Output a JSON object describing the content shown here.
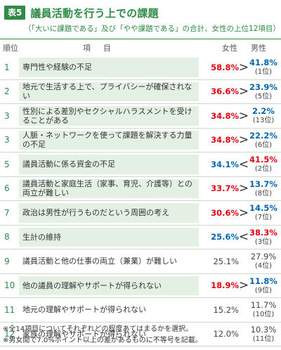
{
  "table": {
    "badge": "表5",
    "title": "議員活動を行う上での課題",
    "subtitle": "（「大いに課題である」及び「やや課題である」の合計、女性の上位12項目）"
  },
  "headers": {
    "rank": "順位",
    "item": "項目",
    "female": "女性",
    "male": "男性"
  },
  "rows": [
    {
      "rank": "1",
      "item": "専門性や経験の不足",
      "female": "58.8%",
      "female_style": "hot",
      "cmp": ">",
      "male": "41.8%",
      "male_style": "cool",
      "male_rank": "(1位)",
      "shaded": true
    },
    {
      "rank": "2",
      "item": "地元で生活する上で、プライバシーが確保されない",
      "female": "36.6%",
      "female_style": "hot",
      "cmp": ">",
      "male": "23.9%",
      "male_style": "cool",
      "male_rank": "(5位)",
      "shaded": true
    },
    {
      "rank": "3",
      "item": "性別による差別やセクシャルハラスメントを受けることがある",
      "female": "34.8%",
      "female_style": "hot",
      "cmp": ">",
      "male": "2.2%",
      "male_style": "cool",
      "male_rank": "(13位)",
      "shaded": true
    },
    {
      "rank": "3",
      "item": "人脈・ネットワークを使って課題を解決する力量の不足",
      "female": "34.8%",
      "female_style": "hot",
      "cmp": ">",
      "male": "22.2%",
      "male_style": "cool",
      "male_rank": "(6位)",
      "shaded": true
    },
    {
      "rank": "5",
      "item": "議員活動に係る資金の不足",
      "female": "34.1%",
      "female_style": "cool",
      "cmp": "<",
      "male": "41.5%",
      "male_style": "hot",
      "male_rank": "(2位)",
      "shaded": true
    },
    {
      "rank": "6",
      "item": "議員活動と家庭生活（家事、育児、介護等）との両立が難しい",
      "female": "33.7%",
      "female_style": "hot",
      "cmp": ">",
      "male": "13.7%",
      "male_style": "cool",
      "male_rank": "(8位)",
      "shaded": true
    },
    {
      "rank": "7",
      "item": "政治は男性が行うものだという周囲の考え",
      "female": "30.6%",
      "female_style": "hot",
      "cmp": ">",
      "male": "14.5%",
      "male_style": "cool",
      "male_rank": "(7位)",
      "shaded": true
    },
    {
      "rank": "8",
      "item": "生計の維持",
      "female": "25.6%",
      "female_style": "cool",
      "cmp": "<",
      "male": "38.3%",
      "male_style": "hot",
      "male_rank": "(3位)",
      "shaded": true
    },
    {
      "rank": "9",
      "item": "議員活動と他の仕事の両立（兼業）が難しい",
      "female": "25.1%",
      "female_style": "neutral",
      "cmp": "",
      "male": "27.9%",
      "male_style": "neutral",
      "male_rank": "(4位)",
      "shaded": false
    },
    {
      "rank": "10",
      "item": "他の議員の理解やサポートが得られない",
      "female": "18.9%",
      "female_style": "hot",
      "cmp": ">",
      "male": "11.8%",
      "male_style": "cool",
      "male_rank": "(9位)",
      "shaded": true
    },
    {
      "rank": "11",
      "item": "地元の理解やサポートが得られない",
      "female": "15.2%",
      "female_style": "neutral",
      "cmp": "",
      "male": "11.7%",
      "male_style": "neutral",
      "male_rank": "(10位)",
      "shaded": false
    },
    {
      "rank": "12",
      "item": "家族の理解やサポートが得られない",
      "female": "12.0%",
      "female_style": "neutral",
      "cmp": "",
      "male": "10.3%",
      "male_style": "neutral",
      "male_rank": "(11位)",
      "shaded": false
    }
  ],
  "notes": [
    "※全14項目についてそれぞれどの程度あてはまるかを選択。",
    "※男女間で7.0%ポイント以上の差があるものに不等号を記載。"
  ],
  "colors": {
    "accent": "#2e8a45",
    "shade": "#e4f0e4",
    "hot": "#e60012",
    "cool": "#0066b3"
  }
}
